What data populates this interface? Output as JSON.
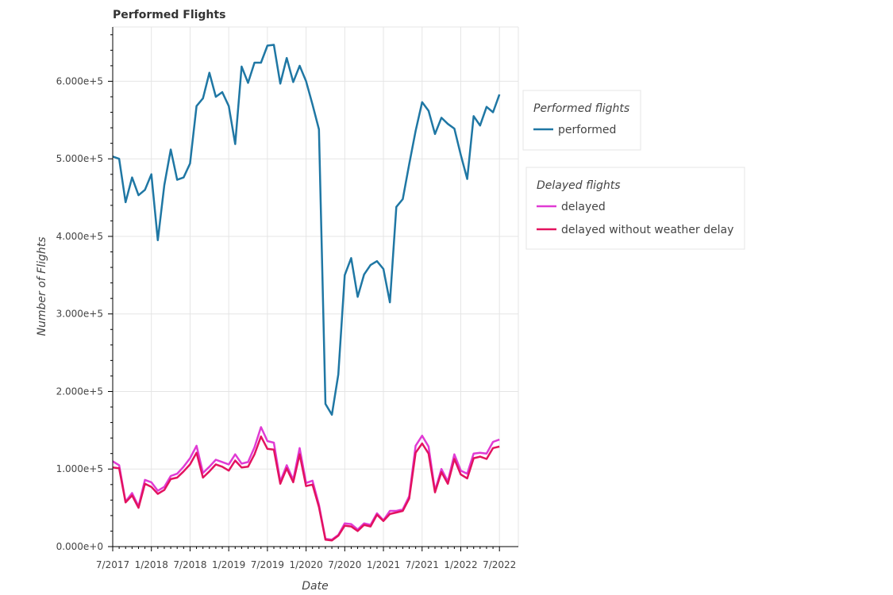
{
  "chart_data": {
    "type": "line",
    "title": "Performed Flights",
    "xlabel": "Date",
    "ylabel": "Number of Flights",
    "x": [
      "2017-07",
      "2017-08",
      "2017-09",
      "2017-10",
      "2017-11",
      "2017-12",
      "2018-01",
      "2018-02",
      "2018-03",
      "2018-04",
      "2018-05",
      "2018-06",
      "2018-07",
      "2018-08",
      "2018-09",
      "2018-10",
      "2018-11",
      "2018-12",
      "2019-01",
      "2019-02",
      "2019-03",
      "2019-04",
      "2019-05",
      "2019-06",
      "2019-07",
      "2019-08",
      "2019-09",
      "2019-10",
      "2019-11",
      "2019-12",
      "2020-01",
      "2020-02",
      "2020-03",
      "2020-04",
      "2020-05",
      "2020-06",
      "2020-07",
      "2020-08",
      "2020-09",
      "2020-10",
      "2020-11",
      "2020-12",
      "2021-01",
      "2021-02",
      "2021-03",
      "2021-04",
      "2021-05",
      "2021-06",
      "2021-07",
      "2021-08",
      "2021-09",
      "2021-10",
      "2021-11",
      "2021-12",
      "2022-01",
      "2022-02",
      "2022-03",
      "2022-04",
      "2022-05",
      "2022-06",
      "2022-07"
    ],
    "xticks": [
      "7/2017",
      "1/2018",
      "7/2018",
      "1/2019",
      "7/2019",
      "1/2020",
      "7/2020",
      "1/2021",
      "7/2021",
      "1/2022",
      "7/2022"
    ],
    "yticks": [
      "0.000e+0",
      "1.000e+5",
      "2.000e+5",
      "3.000e+5",
      "4.000e+5",
      "5.000e+5",
      "6.000e+5"
    ],
    "ylim": [
      0,
      670000
    ],
    "grid": true,
    "legend_groups": [
      {
        "title": "Performed flights",
        "entries": [
          "performed"
        ]
      },
      {
        "title": "Delayed flights",
        "entries": [
          "delayed",
          "delayed without weather delay"
        ]
      }
    ],
    "series": [
      {
        "name": "performed",
        "color": "#1f77a4",
        "values": [
          503000,
          500000,
          444000,
          476000,
          453000,
          460000,
          480000,
          395000,
          466000,
          512000,
          473000,
          476000,
          494000,
          568000,
          578000,
          611000,
          580000,
          586000,
          568000,
          519000,
          619000,
          598000,
          624000,
          624000,
          646000,
          647000,
          597000,
          630000,
          599000,
          620000,
          600000,
          570000,
          538000,
          184000,
          170000,
          222000,
          350000,
          372000,
          322000,
          351000,
          363000,
          368000,
          358000,
          315000,
          438000,
          448000,
          493000,
          536000,
          573000,
          562000,
          532000,
          553000,
          545000,
          539000,
          505000,
          474000,
          555000,
          543000,
          567000,
          560000,
          583000
        ]
      },
      {
        "name": "delayed",
        "color": "#e03bd4",
        "values": [
          110000,
          105000,
          58000,
          69000,
          52000,
          86000,
          83000,
          72000,
          77000,
          91000,
          94000,
          103000,
          114000,
          130000,
          95000,
          103000,
          112000,
          109000,
          106000,
          119000,
          107000,
          109000,
          128000,
          154000,
          136000,
          134000,
          84000,
          105000,
          86000,
          127000,
          82000,
          85000,
          54000,
          10000,
          9000,
          15000,
          30000,
          29000,
          22000,
          30000,
          28000,
          43000,
          34000,
          46000,
          46000,
          48000,
          65000,
          130000,
          143000,
          129000,
          72000,
          100000,
          84000,
          119000,
          98000,
          94000,
          120000,
          121000,
          120000,
          135000,
          138000
        ]
      },
      {
        "name": "delayed without weather delay",
        "color": "#e3125f",
        "values": [
          102000,
          101000,
          57000,
          66000,
          50000,
          81000,
          77000,
          68000,
          73000,
          87000,
          89000,
          97000,
          106000,
          121000,
          89000,
          97000,
          106000,
          103000,
          98000,
          111000,
          102000,
          103000,
          119000,
          142000,
          126000,
          125000,
          81000,
          101000,
          83000,
          119000,
          78000,
          80000,
          51000,
          9000,
          8000,
          14000,
          27000,
          26000,
          20000,
          28000,
          26000,
          41000,
          33000,
          42000,
          44000,
          46000,
          62000,
          121000,
          133000,
          120000,
          70000,
          96000,
          81000,
          113000,
          93000,
          88000,
          114000,
          116000,
          113000,
          127000,
          129000
        ]
      }
    ]
  }
}
